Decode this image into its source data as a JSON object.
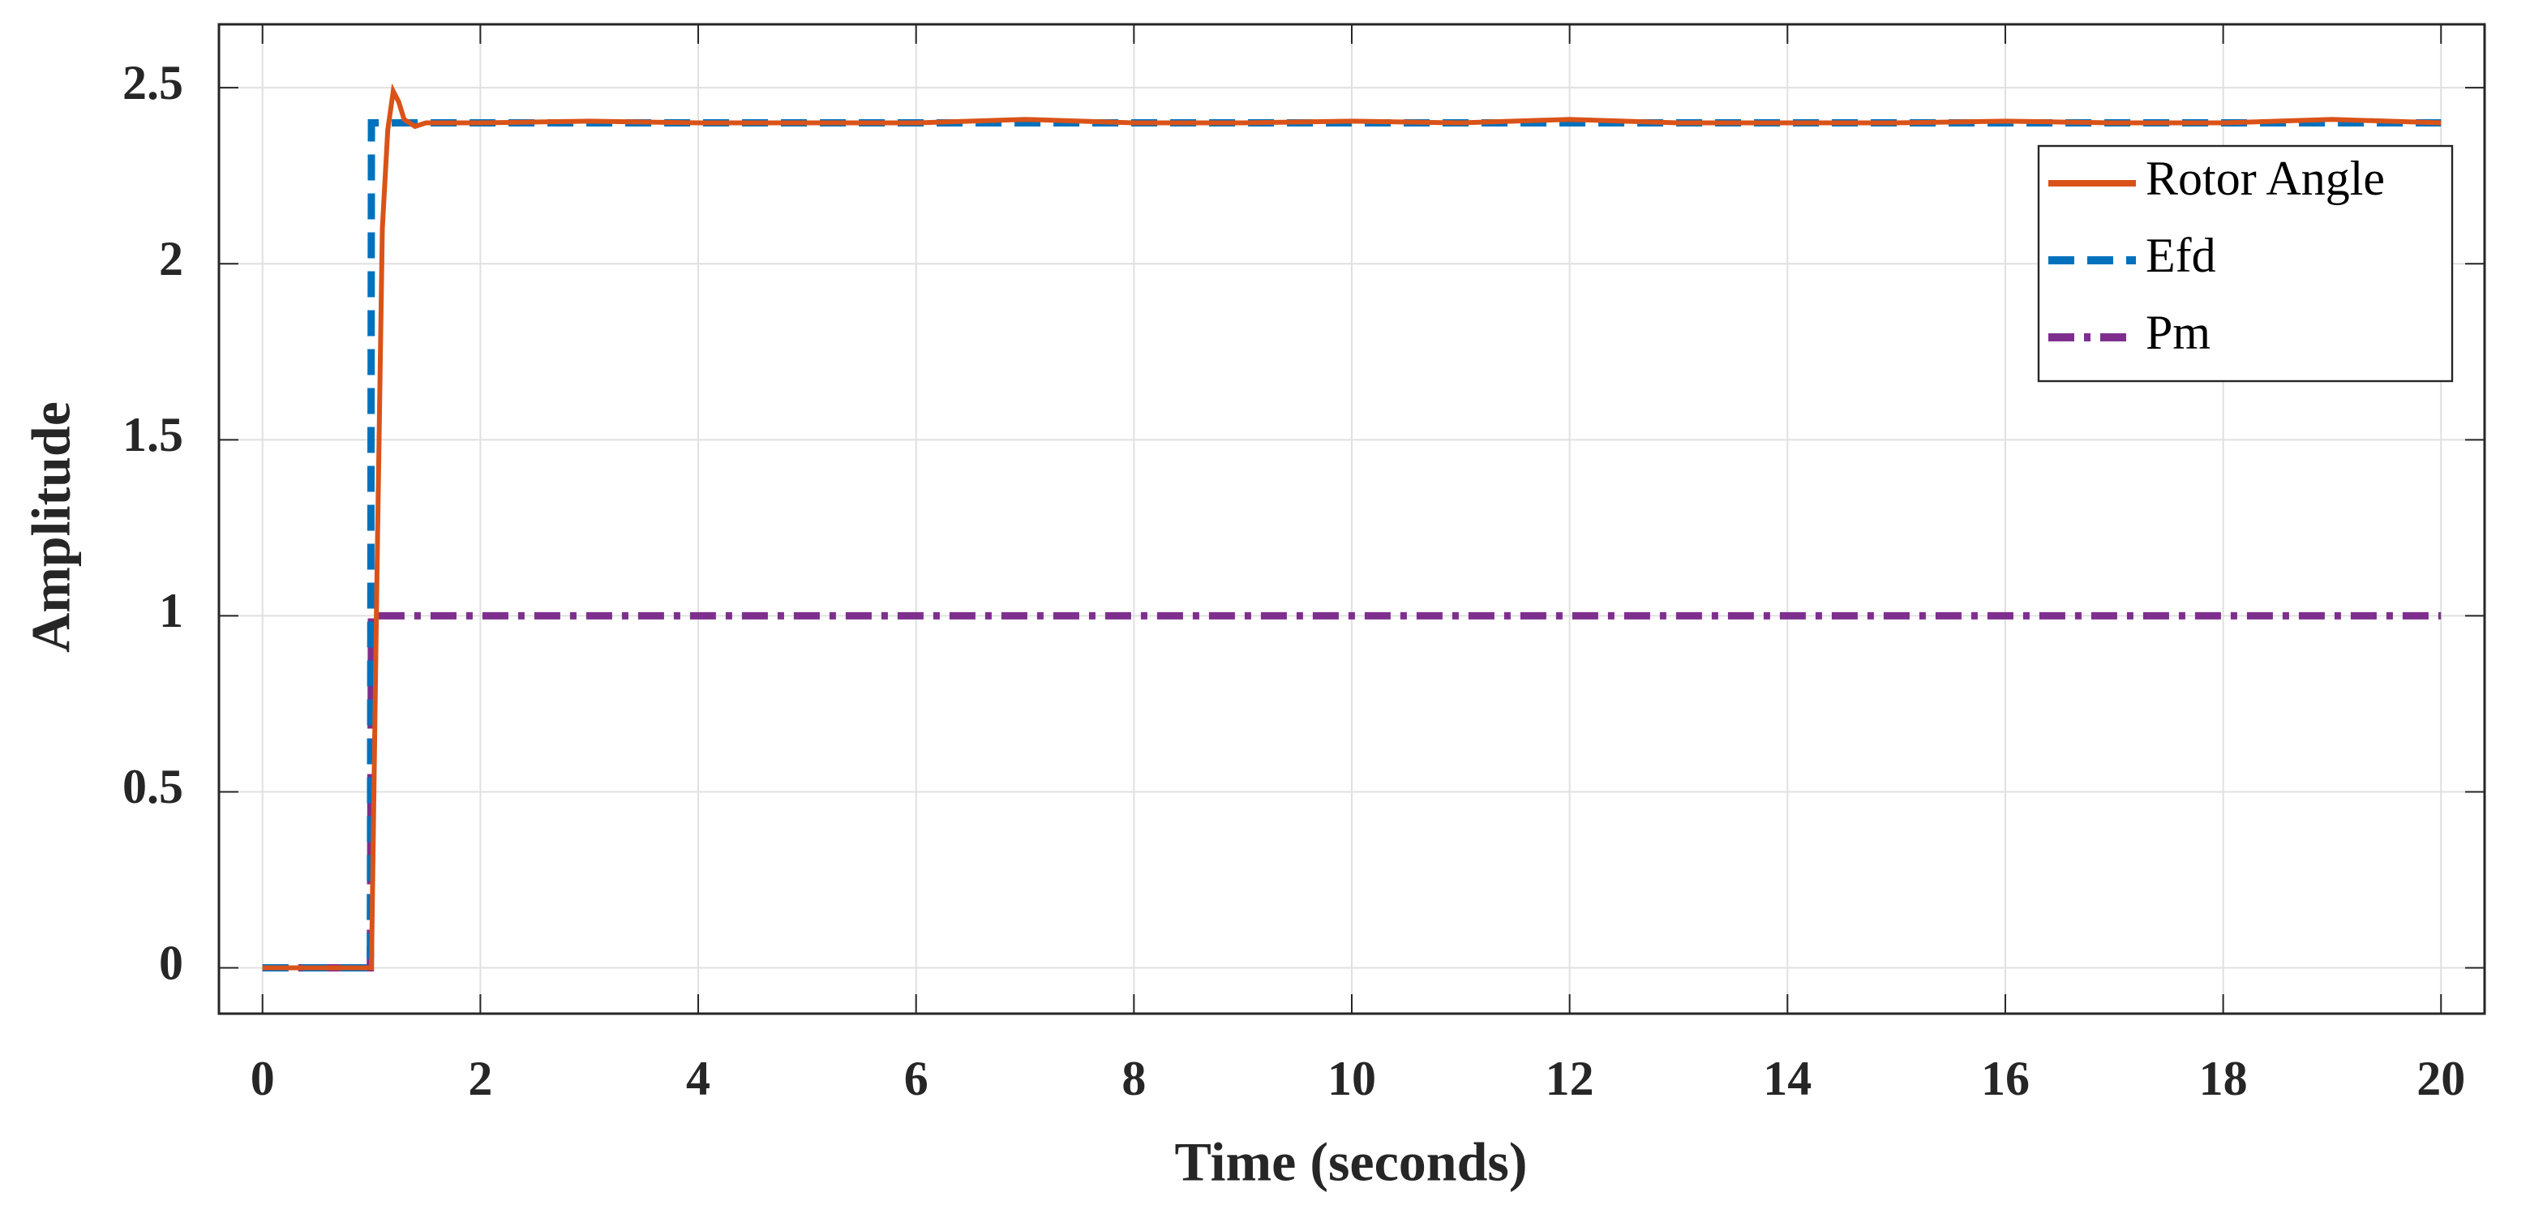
{
  "chart_data": {
    "type": "line",
    "xlabel": "Time (seconds)",
    "ylabel": "Amplitude",
    "x": [
      0,
      0.99,
      1,
      1.05,
      1.1,
      1.15,
      1.2,
      1.25,
      1.3,
      1.4,
      1.5,
      2,
      3,
      4,
      5,
      6,
      7,
      8,
      9,
      10,
      11,
      12,
      13,
      14,
      15,
      16,
      17,
      18,
      19,
      20
    ],
    "series": [
      {
        "name": "Rotor Angle",
        "color": "#d95319",
        "dash": "solid",
        "values": [
          0,
          0,
          0,
          1.1,
          2.1,
          2.38,
          2.49,
          2.46,
          2.41,
          2.39,
          2.4,
          2.4,
          2.405,
          2.4,
          2.4,
          2.4,
          2.41,
          2.4,
          2.4,
          2.405,
          2.4,
          2.41,
          2.4,
          2.4,
          2.4,
          2.405,
          2.4,
          2.4,
          2.41,
          2.4
        ]
      },
      {
        "name": "Efd",
        "color": "#0072bd",
        "dash": "dashed",
        "values": [
          0,
          0,
          2.4,
          2.4,
          2.4,
          2.4,
          2.4,
          2.4,
          2.4,
          2.4,
          2.4,
          2.4,
          2.4,
          2.4,
          2.4,
          2.4,
          2.4,
          2.4,
          2.4,
          2.4,
          2.4,
          2.4,
          2.4,
          2.4,
          2.4,
          2.4,
          2.4,
          2.4,
          2.4,
          2.4
        ]
      },
      {
        "name": "Pm",
        "color": "#7e2f8e",
        "dash": "dashdot",
        "values": [
          0,
          0,
          1,
          1,
          1,
          1,
          1,
          1,
          1,
          1,
          1,
          1,
          1,
          1,
          1,
          1,
          1,
          1,
          1,
          1,
          1,
          1,
          1,
          1,
          1,
          1,
          1,
          1,
          1,
          1
        ]
      }
    ],
    "xlim": [
      -0.4,
      20.4
    ],
    "ylim": [
      -0.13,
      2.68
    ],
    "xticks": [
      0,
      2,
      4,
      6,
      8,
      10,
      12,
      14,
      16,
      18,
      20
    ],
    "yticks": [
      0,
      0.5,
      1,
      1.5,
      2,
      2.5
    ],
    "grid": true,
    "legend": "upper right"
  }
}
